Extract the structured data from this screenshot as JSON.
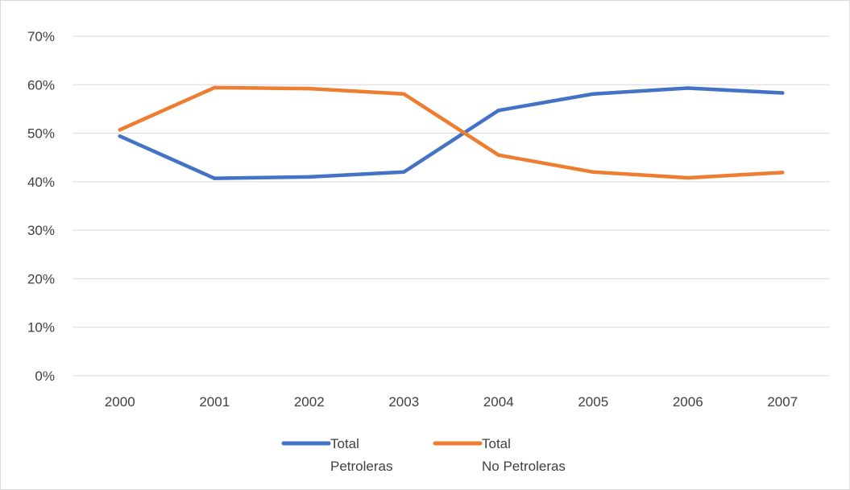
{
  "chart_data": {
    "type": "line",
    "categories": [
      "2000",
      "2001",
      "2002",
      "2003",
      "2004",
      "2005",
      "2006",
      "2007"
    ],
    "series": [
      {
        "name_lines": [
          "Total",
          "Petroleras"
        ],
        "color": "#4472c4",
        "values": [
          0.494,
          0.407,
          0.41,
          0.42,
          0.547,
          0.581,
          0.593,
          0.583
        ]
      },
      {
        "name_lines": [
          "Total",
          "No Petroleras"
        ],
        "color": "#ed7d31",
        "values": [
          0.507,
          0.594,
          0.592,
          0.581,
          0.455,
          0.42,
          0.408,
          0.419
        ]
      }
    ],
    "y_ticks": [
      "0%",
      "10%",
      "20%",
      "30%",
      "40%",
      "50%",
      "60%",
      "70%"
    ],
    "ylim": [
      0,
      0.7
    ],
    "grid": true,
    "legend_position": "bottom"
  }
}
